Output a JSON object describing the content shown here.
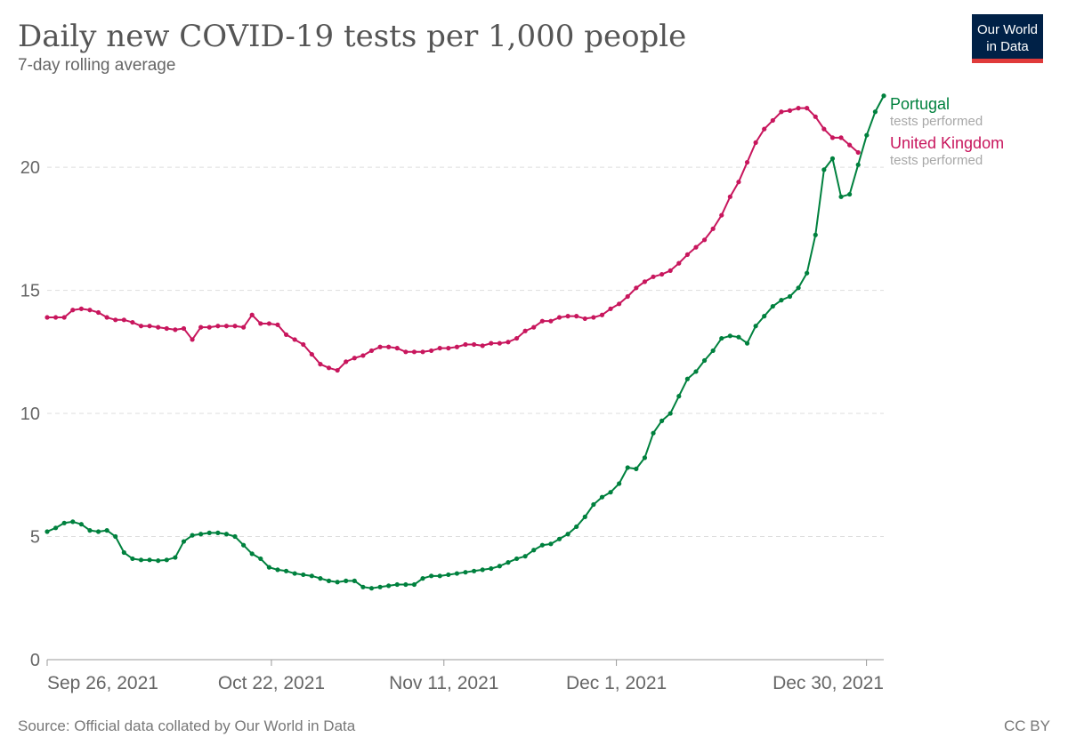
{
  "header": {
    "title": "Daily new COVID-19 tests per 1,000 people",
    "subtitle": "7-day rolling average"
  },
  "logo": {
    "line1": "Our World",
    "line2": "in Data",
    "bg": "#002147",
    "accent": "#e03b3b"
  },
  "footer": {
    "source": "Source: Official data collated by Our World in Data",
    "license": "CC BY"
  },
  "chart_data": {
    "type": "line",
    "x_start": "Sep 26, 2021",
    "x_end": "Jan 1, 2022",
    "x_ticks": [
      "Sep 26, 2021",
      "Oct 22, 2021",
      "Nov 11, 2021",
      "Dec 1, 2021",
      "Dec 30, 2021"
    ],
    "y_ticks": [
      0,
      5,
      10,
      15,
      20
    ],
    "ylim": [
      0,
      23
    ],
    "grid": true,
    "series": [
      {
        "name": "Portugal",
        "sublabel": "tests performed",
        "color": "#00813e",
        "values": [
          5.2,
          5.35,
          5.55,
          5.6,
          5.5,
          5.25,
          5.2,
          5.25,
          5.0,
          4.35,
          4.1,
          4.05,
          4.05,
          4.02,
          4.05,
          4.15,
          4.8,
          5.05,
          5.1,
          5.15,
          5.15,
          5.1,
          5.0,
          4.65,
          4.3,
          4.1,
          3.75,
          3.65,
          3.6,
          3.5,
          3.45,
          3.4,
          3.3,
          3.2,
          3.15,
          3.2,
          3.2,
          2.95,
          2.9,
          2.95,
          3.0,
          3.05,
          3.05,
          3.05,
          3.3,
          3.4,
          3.4,
          3.45,
          3.5,
          3.55,
          3.6,
          3.65,
          3.7,
          3.8,
          3.95,
          4.1,
          4.2,
          4.45,
          4.65,
          4.7,
          4.9,
          5.1,
          5.4,
          5.8,
          6.3,
          6.6,
          6.8,
          7.15,
          7.8,
          7.75,
          8.2,
          9.2,
          9.7,
          10.0,
          10.7,
          11.4,
          11.7,
          12.15,
          12.55,
          13.05,
          13.15,
          13.1,
          12.85,
          13.55,
          13.95,
          14.35,
          14.6,
          14.75,
          15.1,
          15.7,
          17.25,
          19.9,
          20.35,
          18.8,
          18.9,
          20.1,
          21.3,
          22.25,
          22.9
        ]
      },
      {
        "name": "United Kingdom",
        "sublabel": "tests performed",
        "color": "#c8165d",
        "values": [
          13.9,
          13.9,
          13.9,
          14.2,
          14.25,
          14.2,
          14.1,
          13.9,
          13.8,
          13.8,
          13.7,
          13.55,
          13.55,
          13.5,
          13.45,
          13.4,
          13.45,
          13.0,
          13.5,
          13.5,
          13.55,
          13.55,
          13.55,
          13.5,
          14.0,
          13.65,
          13.65,
          13.6,
          13.2,
          13.0,
          12.8,
          12.4,
          12.0,
          11.85,
          11.75,
          12.1,
          12.25,
          12.35,
          12.55,
          12.7,
          12.7,
          12.65,
          12.5,
          12.5,
          12.5,
          12.55,
          12.65,
          12.65,
          12.7,
          12.8,
          12.8,
          12.75,
          12.85,
          12.85,
          12.9,
          13.05,
          13.35,
          13.5,
          13.75,
          13.75,
          13.9,
          13.95,
          13.95,
          13.85,
          13.9,
          14.0,
          14.25,
          14.45,
          14.75,
          15.1,
          15.35,
          15.55,
          15.65,
          15.8,
          16.1,
          16.45,
          16.75,
          17.05,
          17.5,
          18.05,
          18.8,
          19.4,
          20.2,
          21.0,
          21.55,
          21.9,
          22.25,
          22.3,
          22.4,
          22.4,
          22.05,
          21.55,
          21.2,
          21.2,
          20.9,
          20.6
        ]
      }
    ]
  }
}
